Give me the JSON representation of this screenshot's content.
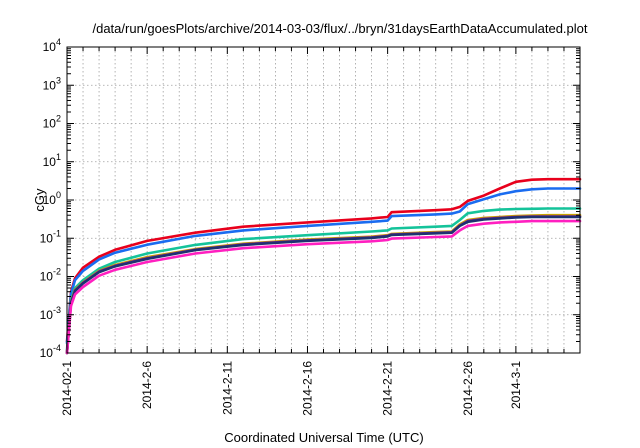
{
  "chart_data": {
    "type": "line",
    "title": "/data/run/goesPlots/archive/2014-03-03/flux/../bryn/31daysEarthDataAccumulated.plot",
    "xlabel": "Coordinated Universal Time (UTC)",
    "ylabel": "cGy",
    "y_scale": "log",
    "ylim": [
      0.0001,
      10000
    ],
    "y_ticks": [
      {
        "value": 0.0001,
        "base": "10",
        "exp": "-4"
      },
      {
        "value": 0.001,
        "base": "10",
        "exp": "-3"
      },
      {
        "value": 0.01,
        "base": "10",
        "exp": "-2"
      },
      {
        "value": 0.1,
        "base": "10",
        "exp": "-1"
      },
      {
        "value": 1,
        "base": "10",
        "exp": "0"
      },
      {
        "value": 10,
        "base": "10",
        "exp": "1"
      },
      {
        "value": 100,
        "base": "10",
        "exp": "2"
      },
      {
        "value": 1000,
        "base": "10",
        "exp": "3"
      },
      {
        "value": 10000,
        "base": "10",
        "exp": "4"
      }
    ],
    "xlim": [
      "2014-02-01",
      "2014-03-05"
    ],
    "x_ticks": [
      "2014-02-1",
      "2014-2-6",
      "2014-2-11",
      "2014-2-16",
      "2014-2-21",
      "2014-2-26",
      "2014-3-1"
    ],
    "x_tick_dates": [
      "2014-02-01",
      "2014-02-06",
      "2014-02-11",
      "2014-02-16",
      "2014-02-21",
      "2014-02-26",
      "2014-03-01"
    ],
    "grid": true,
    "x": [
      "2014-02-01",
      "2014-02-01T06:00",
      "2014-02-01T12:00",
      "2014-02-02",
      "2014-02-03",
      "2014-02-04",
      "2014-02-06",
      "2014-02-09",
      "2014-02-12",
      "2014-02-16",
      "2014-02-20",
      "2014-02-21",
      "2014-02-21T06:00",
      "2014-02-24",
      "2014-02-25",
      "2014-02-25T12:00",
      "2014-02-26",
      "2014-02-27",
      "2014-02-28",
      "2014-03-01",
      "2014-03-02",
      "2014-03-03",
      "2014-03-05"
    ],
    "series": [
      {
        "color": "#e8001c",
        "values": [
          0.0002,
          0.004,
          0.009,
          0.017,
          0.033,
          0.05,
          0.085,
          0.14,
          0.2,
          0.26,
          0.33,
          0.36,
          0.48,
          0.54,
          0.57,
          0.66,
          0.95,
          1.3,
          2.0,
          3.0,
          3.4,
          3.5,
          3.5
        ]
      },
      {
        "color": "#1a6cf0",
        "values": [
          0.00018,
          0.0035,
          0.008,
          0.014,
          0.028,
          0.042,
          0.068,
          0.115,
          0.16,
          0.21,
          0.27,
          0.29,
          0.38,
          0.42,
          0.44,
          0.5,
          0.78,
          1.05,
          1.4,
          1.7,
          1.9,
          2.0,
          2.0
        ]
      },
      {
        "color": "#14c39a",
        "values": [
          0.00012,
          0.0025,
          0.005,
          0.008,
          0.016,
          0.024,
          0.04,
          0.067,
          0.095,
          0.12,
          0.15,
          0.16,
          0.18,
          0.2,
          0.21,
          0.3,
          0.45,
          0.52,
          0.56,
          0.58,
          0.59,
          0.6,
          0.6
        ]
      },
      {
        "color": "#c9a200",
        "values": [
          0.0001,
          0.0022,
          0.0045,
          0.007,
          0.014,
          0.02,
          0.032,
          0.052,
          0.072,
          0.092,
          0.11,
          0.12,
          0.13,
          0.145,
          0.15,
          0.23,
          0.3,
          0.34,
          0.36,
          0.38,
          0.39,
          0.4,
          0.4
        ]
      },
      {
        "color": "#7a1a9e",
        "values": [
          0.0001,
          0.0021,
          0.0043,
          0.0068,
          0.0135,
          0.019,
          0.03,
          0.05,
          0.069,
          0.088,
          0.105,
          0.115,
          0.125,
          0.138,
          0.143,
          0.215,
          0.28,
          0.32,
          0.34,
          0.36,
          0.37,
          0.37,
          0.37
        ]
      },
      {
        "color": "#1f3070",
        "values": [
          0.0001,
          0.002,
          0.0042,
          0.0066,
          0.013,
          0.0185,
          0.029,
          0.049,
          0.067,
          0.086,
          0.102,
          0.112,
          0.122,
          0.135,
          0.14,
          0.21,
          0.27,
          0.31,
          0.33,
          0.35,
          0.36,
          0.36,
          0.36
        ]
      },
      {
        "color": "#ff1fc0",
        "values": [
          0.0001,
          0.0017,
          0.0034,
          0.0053,
          0.0105,
          0.015,
          0.024,
          0.04,
          0.055,
          0.07,
          0.083,
          0.09,
          0.098,
          0.108,
          0.112,
          0.16,
          0.21,
          0.24,
          0.26,
          0.27,
          0.28,
          0.28,
          0.28
        ]
      }
    ]
  }
}
